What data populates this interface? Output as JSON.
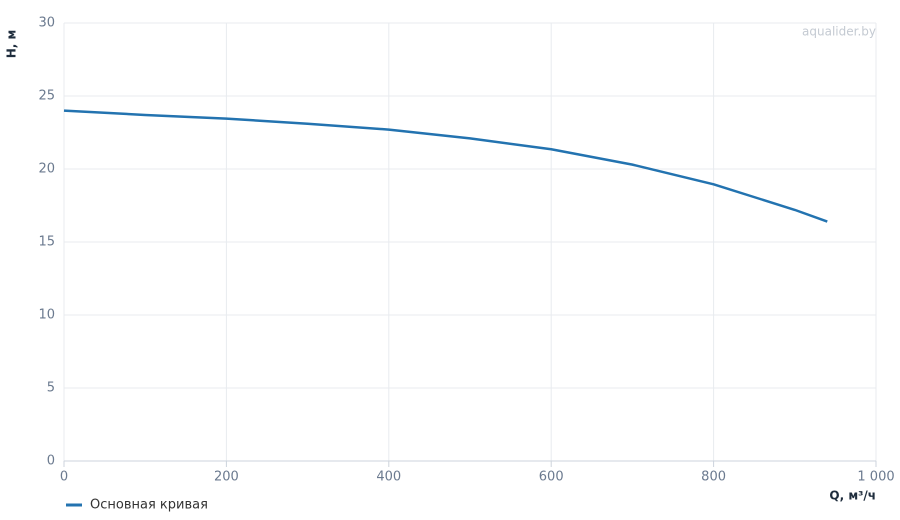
{
  "chart_data": {
    "type": "line",
    "watermark": "aqualider.by",
    "x_label": "Q, м³/ч",
    "y_label": "H, м",
    "x": [
      0,
      100,
      200,
      300,
      400,
      500,
      600,
      700,
      800,
      900,
      940
    ],
    "series": [
      {
        "name": "Основная кривая",
        "color": "#2373b0",
        "values": [
          24.0,
          23.7,
          23.45,
          23.1,
          22.7,
          22.1,
          21.35,
          20.3,
          18.95,
          17.2,
          16.4
        ]
      }
    ],
    "xlim": [
      0,
      1000
    ],
    "xticks": [
      0,
      200,
      400,
      600,
      800,
      {
        "value": 1000,
        "label": "1 000"
      }
    ],
    "ylim": [
      0,
      30
    ],
    "yticks": [
      0,
      5,
      10,
      15,
      20,
      25,
      30
    ],
    "grid": true,
    "legend": "bottom-left"
  }
}
